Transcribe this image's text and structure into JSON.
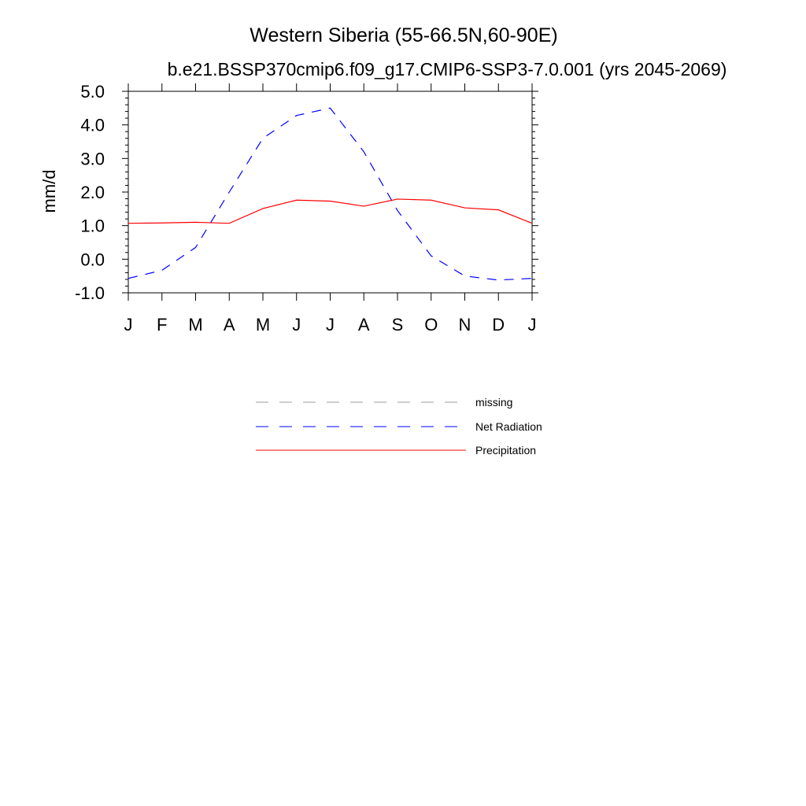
{
  "chart_data": {
    "type": "line",
    "title": "Western Siberia (55-66.5N,60-90E)",
    "subtitle": "b.e21.BSSP370cmip6.f09_g17.CMIP6-SSP3-7.0.001 (yrs 2045-2069)",
    "xlabel": "",
    "ylabel": "mm/d",
    "categories": [
      "J",
      "F",
      "M",
      "A",
      "M",
      "J",
      "J",
      "A",
      "S",
      "O",
      "N",
      "D",
      "J"
    ],
    "ylim": [
      -1.0,
      5.0
    ],
    "yticks": [
      "-1.0",
      "0.0",
      "1.0",
      "2.0",
      "3.0",
      "4.0",
      "5.0"
    ],
    "grid": false,
    "legend_position": "bottom",
    "series": [
      {
        "name": "Net Radiation",
        "color": "#0000ff",
        "style": "dashed",
        "values": [
          -0.57,
          -0.33,
          0.35,
          2.0,
          3.6,
          4.28,
          4.5,
          3.2,
          1.45,
          0.1,
          -0.5,
          -0.62,
          -0.57
        ]
      },
      {
        "name": "Precipitation",
        "color": "#ff0000",
        "style": "solid",
        "values": [
          1.07,
          1.08,
          1.1,
          1.07,
          1.51,
          1.76,
          1.73,
          1.58,
          1.79,
          1.76,
          1.53,
          1.47,
          1.07
        ]
      }
    ],
    "legend": [
      {
        "label": "missing",
        "color": "#9e9e9e",
        "style": "dashed"
      },
      {
        "label": "Net Radiation",
        "color": "#0000ff",
        "style": "dashed"
      },
      {
        "label": "Precipitation",
        "color": "#ff0000",
        "style": "solid"
      }
    ]
  }
}
